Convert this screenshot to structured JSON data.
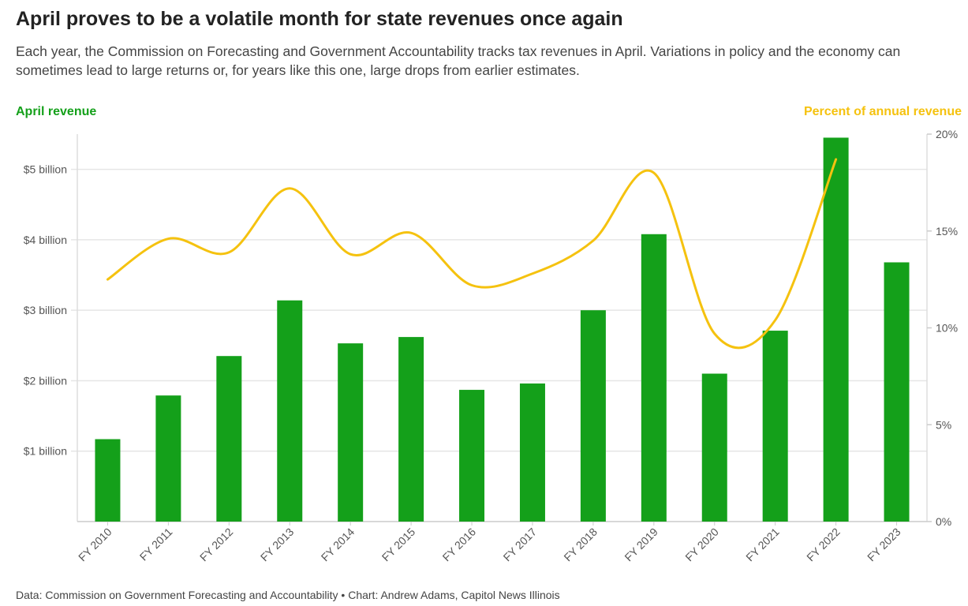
{
  "title": "April proves to be a volatile month for state revenues once again",
  "subtitle": "Each year, the Commission on Forecasting and Government Accountability tracks tax revenues in April. Variations in policy and the economy can sometimes lead to large returns or, for years like this one, large drops from earlier estimates.",
  "source": "Data: Commission on Government Forecasting and Accountability • Chart: Andrew Adams, Capitol News Illinois",
  "chart_data": {
    "type": "bar+line",
    "categories": [
      "FY 2010",
      "FY 2011",
      "FY 2012",
      "FY 2013",
      "FY 2014",
      "FY 2015",
      "FY 2016",
      "FY 2017",
      "FY 2018",
      "FY 2019",
      "FY 2020",
      "FY 2021",
      "FY 2022",
      "FY 2023"
    ],
    "series": [
      {
        "name": "April revenue",
        "type": "bar",
        "axis": "left",
        "color": "#14a01a",
        "values": [
          1.17,
          1.79,
          2.35,
          3.14,
          2.53,
          2.62,
          1.87,
          1.96,
          3.0,
          4.08,
          2.1,
          2.71,
          5.45,
          3.68
        ]
      },
      {
        "name": "Percent of annual revenue",
        "type": "line",
        "axis": "right",
        "color": "#f5c20f",
        "values": [
          12.5,
          14.6,
          13.9,
          17.2,
          13.8,
          14.9,
          12.2,
          12.8,
          14.5,
          18.0,
          9.7,
          10.4,
          18.7,
          null
        ]
      }
    ],
    "ylabel_left": "April revenue",
    "ylabel_right": "Percent of annual revenue",
    "ylim_left": [
      0,
      5.5
    ],
    "ylim_right": [
      0,
      20
    ],
    "yticks_left": [
      {
        "v": 1,
        "label": "$1 billion"
      },
      {
        "v": 2,
        "label": "$2 billion"
      },
      {
        "v": 3,
        "label": "$3 billion"
      },
      {
        "v": 4,
        "label": "$4 billion"
      },
      {
        "v": 5,
        "label": "$5 billion"
      }
    ],
    "yticks_right": [
      {
        "v": 0,
        "label": "0%"
      },
      {
        "v": 5,
        "label": "5%"
      },
      {
        "v": 10,
        "label": "10%"
      },
      {
        "v": 15,
        "label": "15%"
      },
      {
        "v": 20,
        "label": "20%"
      }
    ],
    "grid": true,
    "line_smooth": true
  }
}
